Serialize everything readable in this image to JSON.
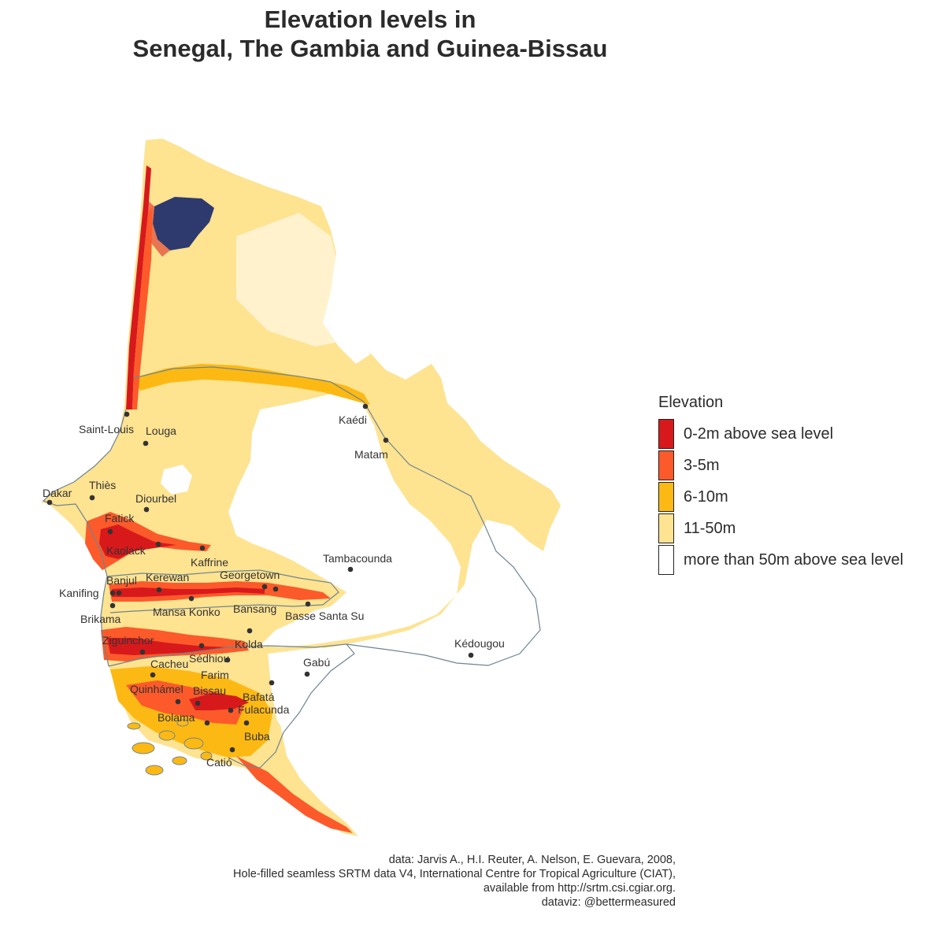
{
  "title": {
    "line1": "Elevation levels in",
    "line2": "Senegal, The Gambia and Guinea-Bissau"
  },
  "legend": {
    "title": "Elevation",
    "items": [
      {
        "label": "0-2m above sea level",
        "color": "#d7191c"
      },
      {
        "label": "3-5m",
        "color": "#fc5a2b"
      },
      {
        "label": "6-10m",
        "color": "#fdb913"
      },
      {
        "label": "11-50m",
        "color": "#fee391"
      },
      {
        "label": "more than 50m above sea level",
        "color": "#ffffff"
      }
    ]
  },
  "low_lying_color": "#2e3a6e",
  "border_color": "#6e8590",
  "cities": [
    "Saint-Louis",
    "Louga",
    "Dakar",
    "Thiès",
    "Diourbel",
    "Fatick",
    "Kaolack",
    "Kaffrine",
    "Kaédi",
    "Matam",
    "Tambacounda",
    "Banjul",
    "Kanifing",
    "Kerewan",
    "Georgetown",
    "Brikama",
    "Mansa Konko",
    "Bansang",
    "Basse Santa Su",
    "Ziguinchor",
    "Sédhiou",
    "Kolda",
    "Kédougou",
    "Cacheu",
    "Farim",
    "Gabú",
    "Quinhámel",
    "Bissau",
    "Bafatá",
    "Bolama",
    "Fulacunda",
    "Buba",
    "Catió"
  ],
  "credits": {
    "line1": "data: Jarvis A., H.I. Reuter, A.  Nelson, E. Guevara, 2008,",
    "line2": "Hole-filled  seamless SRTM data V4, International  Centre for Tropical  Agriculture (CIAT),",
    "line3": "available  from http://srtm.csi.cgiar.org.",
    "line4": "dataviz: @bettermeasured"
  }
}
